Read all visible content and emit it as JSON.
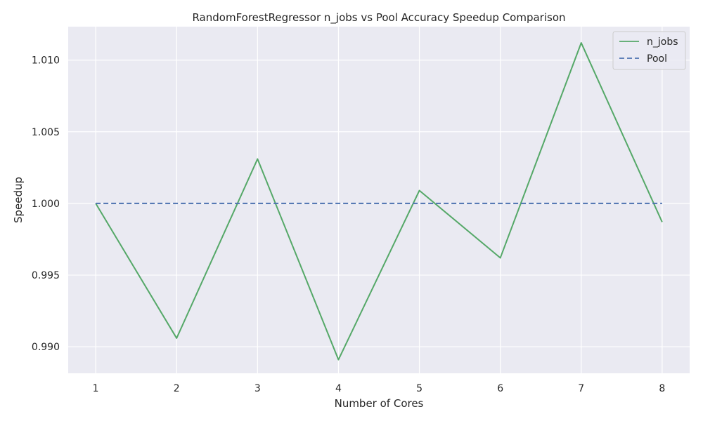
{
  "chart_data": {
    "type": "line",
    "title": "RandomForestRegressor n_jobs vs Pool Accuracy Speedup Comparison",
    "xlabel": "Number of Cores",
    "ylabel": "Speedup",
    "x": [
      1,
      2,
      3,
      4,
      5,
      6,
      7,
      8
    ],
    "xticks": [
      "1",
      "2",
      "3",
      "4",
      "5",
      "6",
      "7",
      "8"
    ],
    "yticks": [
      "0.990",
      "0.995",
      "1.000",
      "1.005",
      "1.010"
    ],
    "ytick_values": [
      0.99,
      0.995,
      1.0,
      1.005,
      1.01
    ],
    "xlim": [
      0.66,
      8.34
    ],
    "ylim": [
      0.98815,
      1.01233
    ],
    "grid": true,
    "legend_position": "top-right",
    "series": [
      {
        "name": "n_jobs",
        "color": "#55a868",
        "style": "solid",
        "values": [
          1.0,
          0.9906,
          1.0031,
          0.9891,
          1.0009,
          0.9962,
          1.0112,
          0.9987
        ]
      },
      {
        "name": "Pool",
        "color": "#4c72b0",
        "style": "dashed",
        "values": [
          1.0,
          1.0,
          1.0,
          1.0,
          1.0,
          1.0,
          1.0,
          1.0
        ]
      }
    ],
    "colors": {
      "plot_background": "#eaeaf2",
      "grid": "#ffffff",
      "text": "#262626"
    }
  }
}
